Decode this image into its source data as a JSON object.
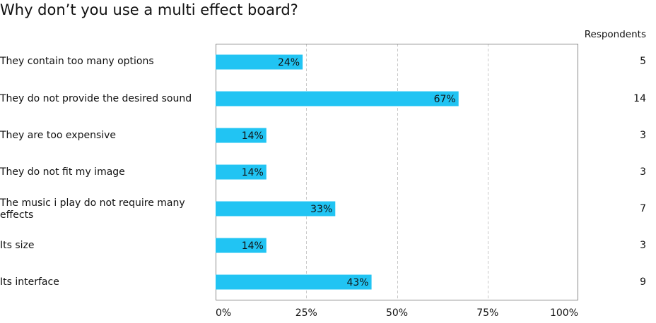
{
  "chart_data": {
    "type": "bar",
    "orientation": "horizontal",
    "title": "Why don’t you use a multi effect board?",
    "categories": [
      "They contain too many options",
      "They do not provide the desired sound",
      "They are too expensive",
      "They do not fit my image",
      "The music i play do not require many effects",
      "Its size",
      "Its interface"
    ],
    "values": [
      24,
      67,
      14,
      14,
      33,
      14,
      43
    ],
    "value_labels": [
      "24%",
      "67%",
      "14%",
      "14%",
      "33%",
      "14%",
      "43%"
    ],
    "respondents_header": "Respondents",
    "respondents": [
      "5",
      "14",
      "3",
      "3",
      "7",
      "3",
      "9"
    ],
    "xlim": [
      0,
      100
    ],
    "xticks": [
      "0%",
      "25%",
      "50%",
      "75%",
      "100%"
    ],
    "grid": true,
    "bar_color": "#21c4f3"
  }
}
